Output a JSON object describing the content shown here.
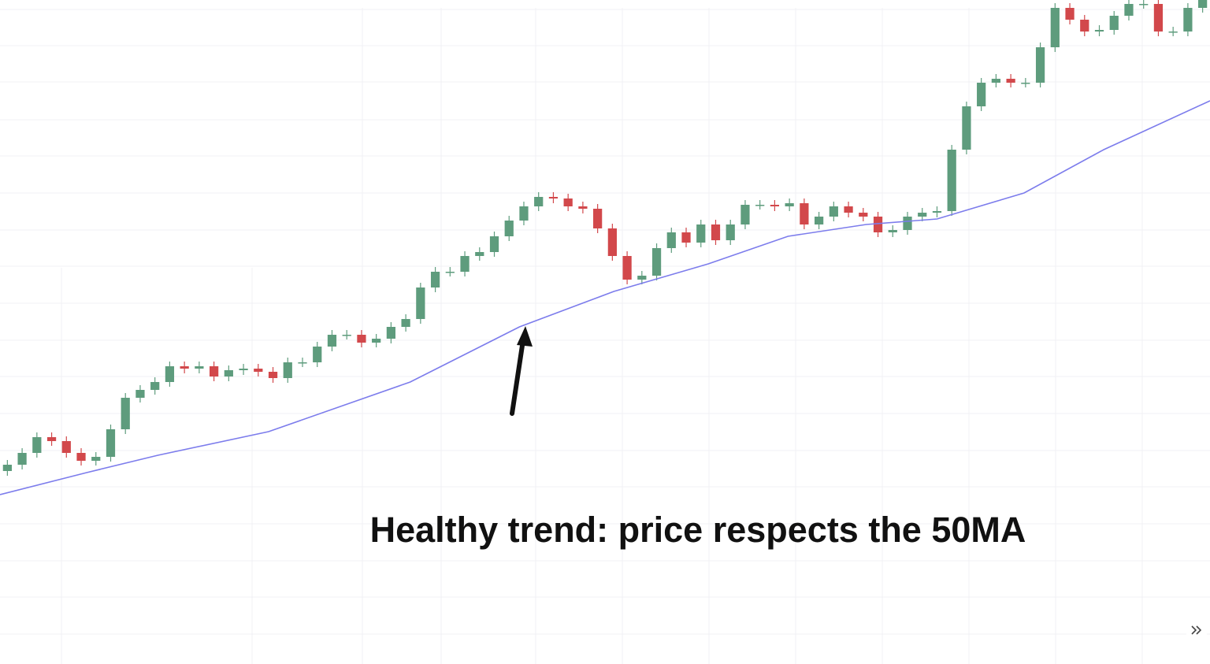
{
  "chart_data": {
    "type": "candlestick",
    "annotation": "Healthy trend: price respects the 50MA",
    "ylim": [
      0,
      843
    ],
    "xlim": [
      -0.5,
      81.5
    ],
    "up_color": "#5e9c7d",
    "down_color": "#d2484b",
    "grid": true,
    "open": [
      245,
      253,
      268,
      288,
      283,
      268,
      258,
      263,
      298,
      338,
      348,
      358,
      378,
      375,
      378,
      365,
      373,
      375,
      371,
      363,
      383,
      383,
      403,
      418,
      418,
      408,
      413,
      428,
      438,
      478,
      498,
      498,
      518,
      523,
      543,
      563,
      581,
      593,
      591,
      581,
      578,
      553,
      518,
      488,
      493,
      528,
      548,
      535,
      558,
      538,
      558,
      583,
      583,
      581,
      585,
      558,
      568,
      581,
      573,
      568,
      548,
      551,
      568,
      573,
      575,
      653,
      708,
      738,
      743,
      738,
      738,
      783,
      833,
      818,
      803,
      805,
      823,
      838,
      838,
      803,
      803,
      833
    ],
    "close": [
      253,
      268,
      288,
      283,
      268,
      258,
      263,
      298,
      338,
      348,
      358,
      378,
      375,
      378,
      365,
      373,
      375,
      371,
      363,
      383,
      383,
      403,
      418,
      418,
      408,
      413,
      428,
      438,
      478,
      498,
      498,
      518,
      523,
      543,
      563,
      581,
      593,
      591,
      581,
      578,
      553,
      518,
      488,
      493,
      528,
      548,
      535,
      558,
      538,
      558,
      583,
      583,
      581,
      585,
      558,
      568,
      581,
      573,
      568,
      548,
      551,
      568,
      573,
      575,
      653,
      708,
      738,
      743,
      738,
      738,
      783,
      833,
      818,
      803,
      805,
      823,
      838,
      838,
      803,
      803,
      833,
      843
    ],
    "high": [
      259,
      274,
      294,
      294,
      289,
      274,
      269,
      304,
      344,
      354,
      364,
      384,
      384,
      384,
      384,
      379,
      381,
      381,
      377,
      389,
      389,
      409,
      424,
      424,
      424,
      419,
      434,
      444,
      484,
      504,
      504,
      524,
      529,
      549,
      569,
      587,
      599,
      599,
      597,
      587,
      584,
      559,
      524,
      499,
      534,
      554,
      554,
      564,
      564,
      564,
      589,
      589,
      589,
      591,
      591,
      574,
      587,
      587,
      579,
      574,
      557,
      574,
      579,
      581,
      659,
      714,
      744,
      749,
      749,
      744,
      789,
      839,
      839,
      824,
      811,
      829,
      844,
      844,
      844,
      809,
      839,
      849
    ],
    "low": [
      239,
      247,
      262,
      277,
      262,
      252,
      252,
      257,
      292,
      332,
      342,
      352,
      369,
      369,
      359,
      359,
      367,
      365,
      357,
      357,
      377,
      377,
      397,
      412,
      402,
      402,
      407,
      422,
      432,
      472,
      492,
      492,
      512,
      517,
      537,
      557,
      575,
      585,
      575,
      572,
      547,
      512,
      482,
      482,
      487,
      522,
      529,
      529,
      532,
      532,
      552,
      577,
      575,
      575,
      552,
      552,
      562,
      567,
      562,
      542,
      542,
      545,
      562,
      567,
      569,
      647,
      702,
      732,
      732,
      732,
      732,
      777,
      812,
      797,
      797,
      799,
      817,
      832,
      797,
      797,
      797,
      827
    ],
    "ma": {
      "name": "50MA",
      "color": "#7c7cec",
      "x": [
        -0.5,
        5.37,
        10.2,
        17.7,
        27.3,
        34.7,
        41.1,
        47.5,
        52.9,
        58.2,
        63.0,
        68.9,
        74.3,
        81.5
      ],
      "values": [
        215,
        243,
        265,
        295,
        358,
        428,
        473,
        508,
        543,
        558,
        565,
        598,
        653,
        715
      ]
    }
  }
}
